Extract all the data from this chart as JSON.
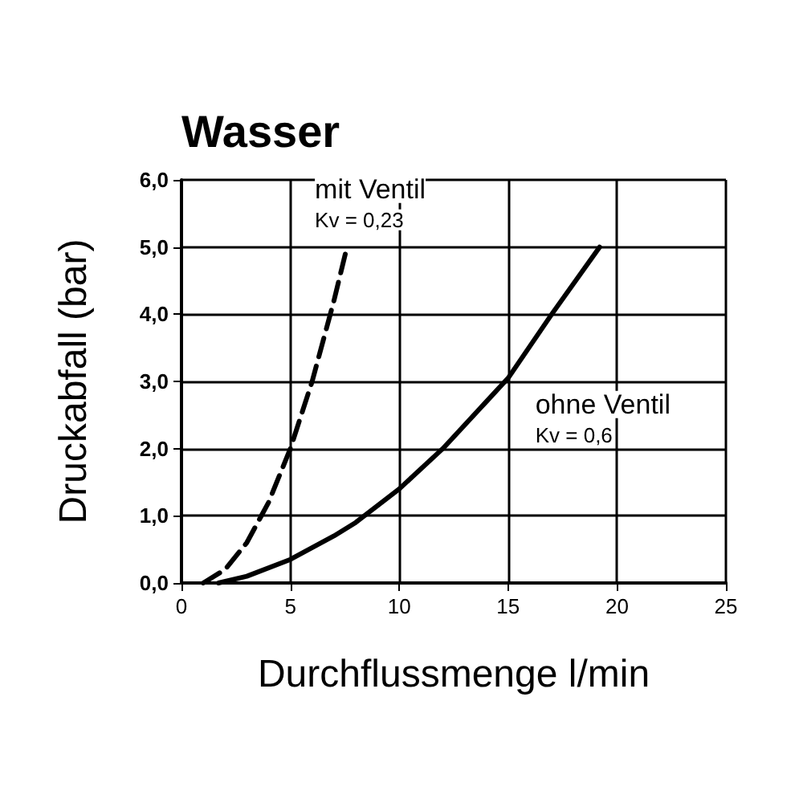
{
  "chart_data": {
    "type": "line",
    "title": "Wasser",
    "xlabel": "Durchflussmenge l/min",
    "ylabel": "Druckabfall (bar)",
    "xlim": [
      0,
      25
    ],
    "xticks": [
      0,
      5,
      10,
      15,
      20,
      25
    ],
    "ylim": [
      0,
      6
    ],
    "yticks": [
      {
        "value": 0,
        "label": "0,0"
      },
      {
        "value": 1,
        "label": "1,0"
      },
      {
        "value": 2,
        "label": "2,0"
      },
      {
        "value": 3,
        "label": "3,0"
      },
      {
        "value": 4,
        "label": "4,0"
      },
      {
        "value": 5,
        "label": "5,0"
      },
      {
        "value": 6,
        "label": "6,0"
      }
    ],
    "grid": true,
    "marker": "none",
    "series": [
      {
        "name": "mit Ventil",
        "color": "#000000",
        "line_style": "dashed",
        "x": [
          1,
          2,
          3,
          4,
          5,
          6,
          7,
          7.6
        ],
        "values": [
          0,
          0.2,
          0.6,
          1.2,
          2.0,
          3.0,
          4.2,
          5.0
        ]
      },
      {
        "name": "ohne Ventil",
        "color": "#000000",
        "line_style": "solid",
        "x": [
          1.7,
          3,
          5,
          7,
          8,
          10,
          12,
          14,
          15,
          17,
          19.2
        ],
        "values": [
          0,
          0.1,
          0.35,
          0.7,
          0.9,
          1.4,
          2.0,
          2.7,
          3.05,
          4.0,
          5.0
        ]
      }
    ],
    "annotations": [
      "Kv = 0,23",
      "Kv = 0,6"
    ]
  }
}
